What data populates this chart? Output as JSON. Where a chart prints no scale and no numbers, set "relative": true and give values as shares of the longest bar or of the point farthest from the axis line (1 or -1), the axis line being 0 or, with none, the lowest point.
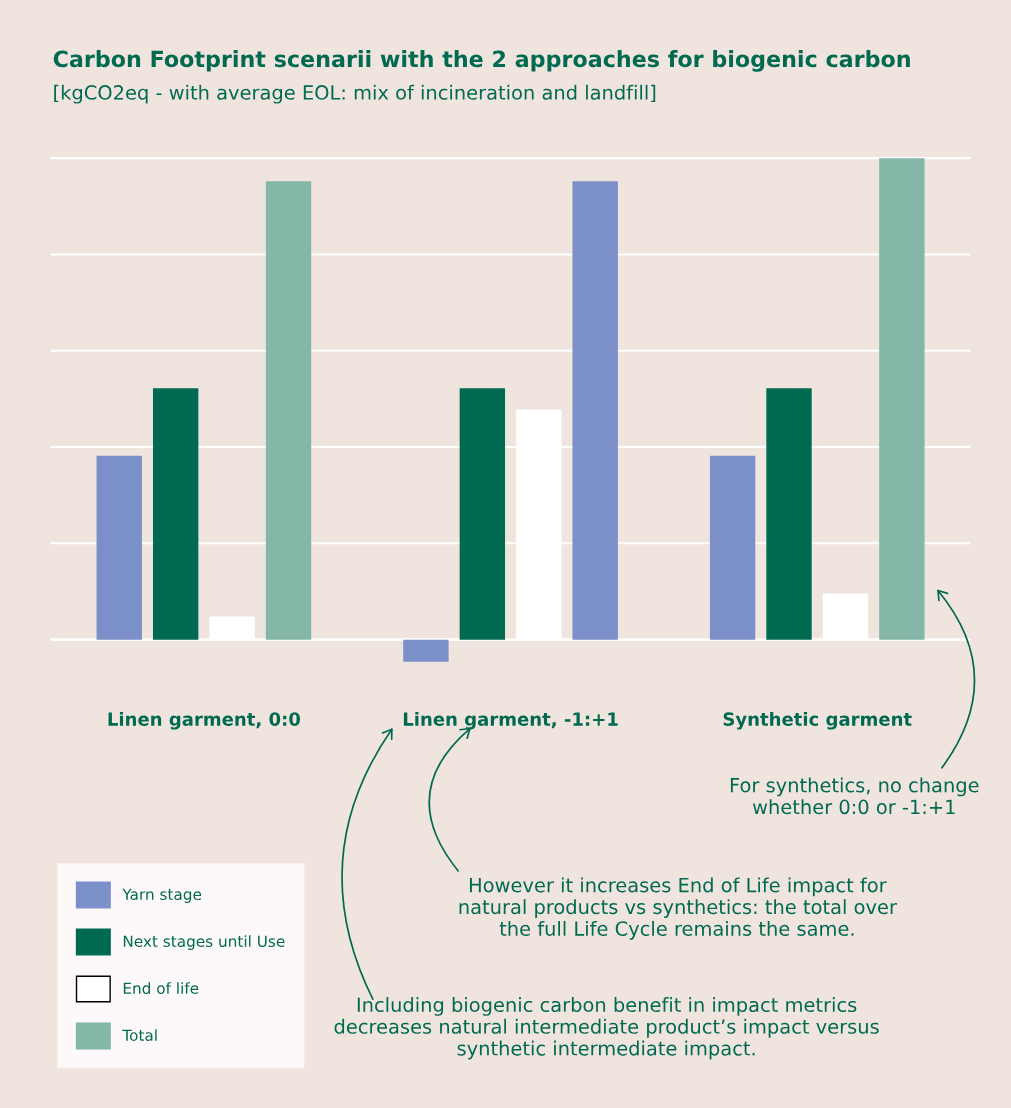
{
  "chart_data": {
    "type": "bar",
    "title": "Carbon Footprint scenarii with the 2 approaches for biogenic carbon",
    "subtitle": "[kgCO2eq - with average EOL: mix of incineration and landfill]",
    "categories": [
      "Linen garment, 0:0",
      "Linen garment, -1:+1",
      "Synthetic garment"
    ],
    "relative": true,
    "grid": "y",
    "legend": "bottom left",
    "series": [
      {
        "name": "Yarn stage",
        "color": "#7b8fc8",
        "values": [
          0.382,
          -0.046,
          0.382
        ]
      },
      {
        "name": "Next stages until Use",
        "color": "#006a50",
        "values": [
          0.522,
          0.522,
          0.522
        ]
      },
      {
        "name": "End of life",
        "color": "#ffffff",
        "values": [
          0.048,
          0.478,
          0.096
        ]
      },
      {
        "name": "Total",
        "color": "#84b7a8",
        "colors": [
          "#84b7a8",
          "#7b8fc8",
          "#84b7a8"
        ],
        "values": [
          0.952,
          0.952,
          1
        ]
      }
    ],
    "annotations": [
      "For synthetics, no change whether 0:0 or -1:+1",
      "However it increases End of Life impact for natural products vs synthetics: the total over the full Life Cycle remains the same.",
      "Including biogenic carbon benefit in impact metrics decreases natural intermediate product’s impact versus synthetic intermediate impact."
    ]
  }
}
